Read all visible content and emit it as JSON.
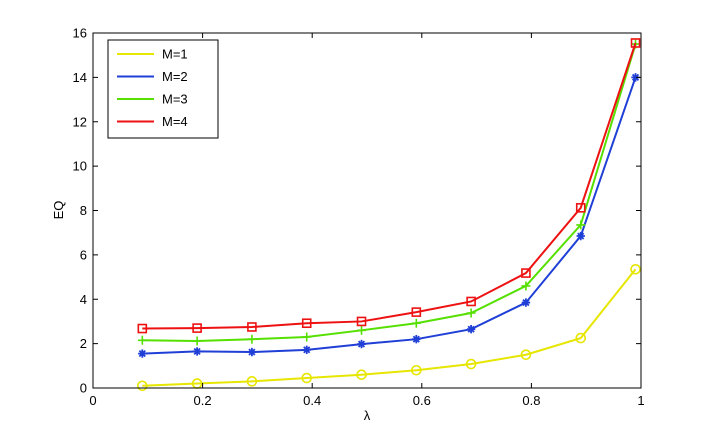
{
  "chart_data": {
    "type": "line",
    "xlabel": "λ",
    "ylabel": "EQ",
    "xlim": [
      0,
      1
    ],
    "ylim": [
      0,
      16
    ],
    "x_ticks": [
      0,
      0.2,
      0.4,
      0.6,
      0.8,
      1
    ],
    "x_tick_labels": [
      "0",
      "0.2",
      "0.4",
      "0.6",
      "0.8",
      "1"
    ],
    "y_ticks": [
      0,
      2,
      4,
      6,
      8,
      10,
      12,
      14,
      16
    ],
    "y_tick_labels": [
      "0",
      "2",
      "4",
      "6",
      "8",
      "10",
      "12",
      "14",
      "16"
    ],
    "grid": false,
    "legend_position": "top-left",
    "x": [
      0.09,
      0.19,
      0.29,
      0.39,
      0.49,
      0.59,
      0.69,
      0.79,
      0.89,
      0.99
    ],
    "series": [
      {
        "name": "M=1",
        "color": "#e6e600",
        "marker": "circle",
        "values": [
          0.1,
          0.2,
          0.3,
          0.45,
          0.6,
          0.8,
          1.08,
          1.5,
          2.25,
          5.35
        ]
      },
      {
        "name": "M=2",
        "color": "#1f3fd6",
        "marker": "star",
        "values": [
          1.55,
          1.65,
          1.62,
          1.72,
          1.98,
          2.2,
          2.65,
          3.85,
          6.85,
          14.0
        ]
      },
      {
        "name": "M=3",
        "color": "#55e000",
        "marker": "plus",
        "values": [
          2.15,
          2.12,
          2.2,
          2.3,
          2.6,
          2.92,
          3.38,
          4.6,
          7.35,
          15.5
        ]
      },
      {
        "name": "M=4",
        "color": "#ee1111",
        "marker": "square",
        "values": [
          2.68,
          2.7,
          2.75,
          2.92,
          3.0,
          3.42,
          3.9,
          5.18,
          8.12,
          15.55
        ]
      }
    ]
  }
}
